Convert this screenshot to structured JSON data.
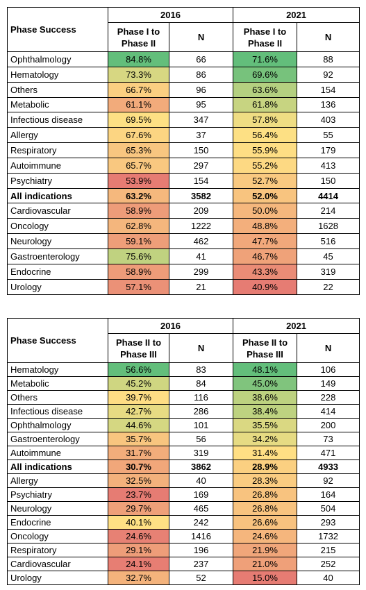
{
  "tables": [
    {
      "header": {
        "label": "Phase Success",
        "years": [
          "2016",
          "2021"
        ],
        "columns": [
          "Phase I to Phase II",
          "N",
          "Phase I to Phase II",
          "N"
        ]
      },
      "bold_row": 9,
      "rows": [
        [
          "Ophthalmology",
          "84.8%",
          "66",
          "71.6%",
          "88"
        ],
        [
          "Hematology",
          "73.3%",
          "86",
          "69.6%",
          "92"
        ],
        [
          "Others",
          "66.7%",
          "96",
          "63.6%",
          "154"
        ],
        [
          "Metabolic",
          "61.1%",
          "95",
          "61.8%",
          "136"
        ],
        [
          "Infectious disease",
          "69.5%",
          "347",
          "57.8%",
          "403"
        ],
        [
          "Allergy",
          "67.6%",
          "37",
          "56.4%",
          "55"
        ],
        [
          "Respiratory",
          "65.3%",
          "150",
          "55.9%",
          "179"
        ],
        [
          "Autoimmune",
          "65.7%",
          "297",
          "55.2%",
          "413"
        ],
        [
          "Psychiatry",
          "53.9%",
          "154",
          "52.7%",
          "150"
        ],
        [
          "All indications",
          "63.2%",
          "3582",
          "52.0%",
          "4414"
        ],
        [
          "Cardiovascular",
          "58.9%",
          "209",
          "50.0%",
          "214"
        ],
        [
          "Oncology",
          "62.8%",
          "1222",
          "48.8%",
          "1628"
        ],
        [
          "Neurology",
          "59.1%",
          "462",
          "47.7%",
          "516"
        ],
        [
          "Gastroenterology",
          "75.6%",
          "41",
          "46.7%",
          "45"
        ],
        [
          "Endocrine",
          "58.9%",
          "299",
          "43.3%",
          "319"
        ],
        [
          "Urology",
          "57.1%",
          "21",
          "40.9%",
          "22"
        ]
      ]
    },
    {
      "header": {
        "label": "Phase Success",
        "years": [
          "2016",
          "2021"
        ],
        "columns": [
          "Phase II to Phase III",
          "N",
          "Phase II to Phase III",
          "N"
        ]
      },
      "bold_row": 7,
      "rows": [
        [
          "Hematology",
          "56.6%",
          "83",
          "48.1%",
          "106"
        ],
        [
          "Metabolic",
          "45.2%",
          "84",
          "45.0%",
          "149"
        ],
        [
          "Others",
          "39.7%",
          "116",
          "38.6%",
          "228"
        ],
        [
          "Infectious disease",
          "42.7%",
          "286",
          "38.4%",
          "414"
        ],
        [
          "Ophthalmology",
          "44.6%",
          "101",
          "35.5%",
          "200"
        ],
        [
          "Gastroenterology",
          "35.7%",
          "56",
          "34.2%",
          "73"
        ],
        [
          "Autoimmune",
          "31.7%",
          "319",
          "31.4%",
          "471"
        ],
        [
          "All indications",
          "30.7%",
          "3862",
          "28.9%",
          "4933"
        ],
        [
          "Allergy",
          "32.5%",
          "40",
          "28.3%",
          "92"
        ],
        [
          "Psychiatry",
          "23.7%",
          "169",
          "26.8%",
          "164"
        ],
        [
          "Neurology",
          "29.7%",
          "465",
          "26.8%",
          "504"
        ],
        [
          "Endocrine",
          "40.1%",
          "242",
          "26.6%",
          "293"
        ],
        [
          "Oncology",
          "24.6%",
          "1416",
          "24.6%",
          "1732"
        ],
        [
          "Respiratory",
          "29.1%",
          "196",
          "21.9%",
          "215"
        ],
        [
          "Cardiovascular",
          "24.1%",
          "237",
          "21.0%",
          "252"
        ],
        [
          "Urology",
          "32.7%",
          "52",
          "15.0%",
          "40"
        ]
      ]
    }
  ],
  "color_scale": [
    "#e67c73",
    "#ffe084",
    "#63be7b"
  ]
}
